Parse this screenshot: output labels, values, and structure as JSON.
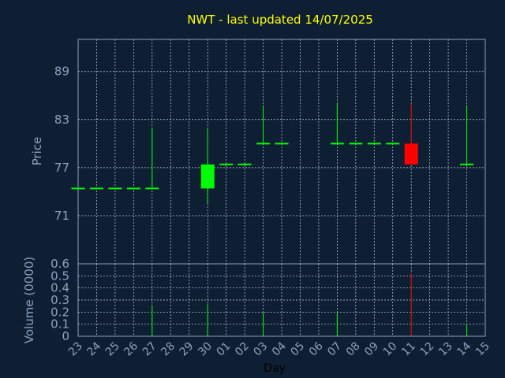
{
  "chart_data": {
    "type": "candlestick",
    "title": "NWT - last updated 14/07/2025",
    "xlabel": "Day",
    "x_ticks": [
      "23",
      "24",
      "25",
      "26",
      "27",
      "28",
      "29",
      "30",
      "01",
      "02",
      "03",
      "04",
      "05",
      "06",
      "07",
      "08",
      "09",
      "10",
      "11",
      "12",
      "13",
      "14",
      "15"
    ],
    "price_panel": {
      "ylabel": "Price",
      "ylim": [
        65,
        93
      ],
      "y_ticks": [
        71,
        77,
        83,
        89
      ],
      "candles": [
        {
          "day": "23",
          "open": 74.4,
          "high": 74.4,
          "low": 74.4,
          "close": 74.4
        },
        {
          "day": "24",
          "open": 74.4,
          "high": 74.4,
          "low": 74.4,
          "close": 74.4
        },
        {
          "day": "25",
          "open": 74.4,
          "high": 74.4,
          "low": 74.4,
          "close": 74.4
        },
        {
          "day": "26",
          "open": 74.4,
          "high": 74.4,
          "low": 74.4,
          "close": 74.4
        },
        {
          "day": "27",
          "open": 74.4,
          "high": 82.0,
          "low": 74.4,
          "close": 74.4
        },
        {
          "day": "30",
          "open": 74.4,
          "high": 82.0,
          "low": 72.5,
          "close": 77.4
        },
        {
          "day": "01",
          "open": 77.4,
          "high": 77.4,
          "low": 77.4,
          "close": 77.4
        },
        {
          "day": "02",
          "open": 77.4,
          "high": 77.4,
          "low": 77.4,
          "close": 77.4
        },
        {
          "day": "03",
          "open": 80.0,
          "high": 84.8,
          "low": 80.0,
          "close": 80.0
        },
        {
          "day": "04",
          "open": 80.0,
          "high": 80.0,
          "low": 80.0,
          "close": 80.0
        },
        {
          "day": "07",
          "open": 80.0,
          "high": 85.0,
          "low": 80.0,
          "close": 80.0
        },
        {
          "day": "08",
          "open": 80.0,
          "high": 80.0,
          "low": 80.0,
          "close": 80.0
        },
        {
          "day": "09",
          "open": 80.0,
          "high": 80.0,
          "low": 80.0,
          "close": 80.0
        },
        {
          "day": "10",
          "open": 80.0,
          "high": 80.0,
          "low": 80.0,
          "close": 80.0
        },
        {
          "day": "11",
          "open": 80.0,
          "high": 85.0,
          "low": 77.4,
          "close": 77.4
        },
        {
          "day": "14",
          "open": 77.4,
          "high": 84.8,
          "low": 77.4,
          "close": 77.4
        }
      ]
    },
    "volume_panel": {
      "ylabel": "Volume (0000)",
      "ylim": [
        0,
        0.6
      ],
      "y_ticks": [
        0,
        0.1,
        0.2,
        0.3,
        0.4,
        0.5,
        0.6
      ],
      "bars": [
        {
          "day": "27",
          "value": 0.25
        },
        {
          "day": "30",
          "value": 0.27
        },
        {
          "day": "03",
          "value": 0.2
        },
        {
          "day": "07",
          "value": 0.2
        },
        {
          "day": "11",
          "value": 0.52
        },
        {
          "day": "14",
          "value": 0.1
        }
      ]
    },
    "grid": true,
    "colors": {
      "background": "#0f1f33",
      "axis": "#8aa2bf",
      "grid": "#c9d3df",
      "title": "#ffff00",
      "up": "#00ff00",
      "down": "#ff0000",
      "label": "#8aa2bf"
    }
  }
}
